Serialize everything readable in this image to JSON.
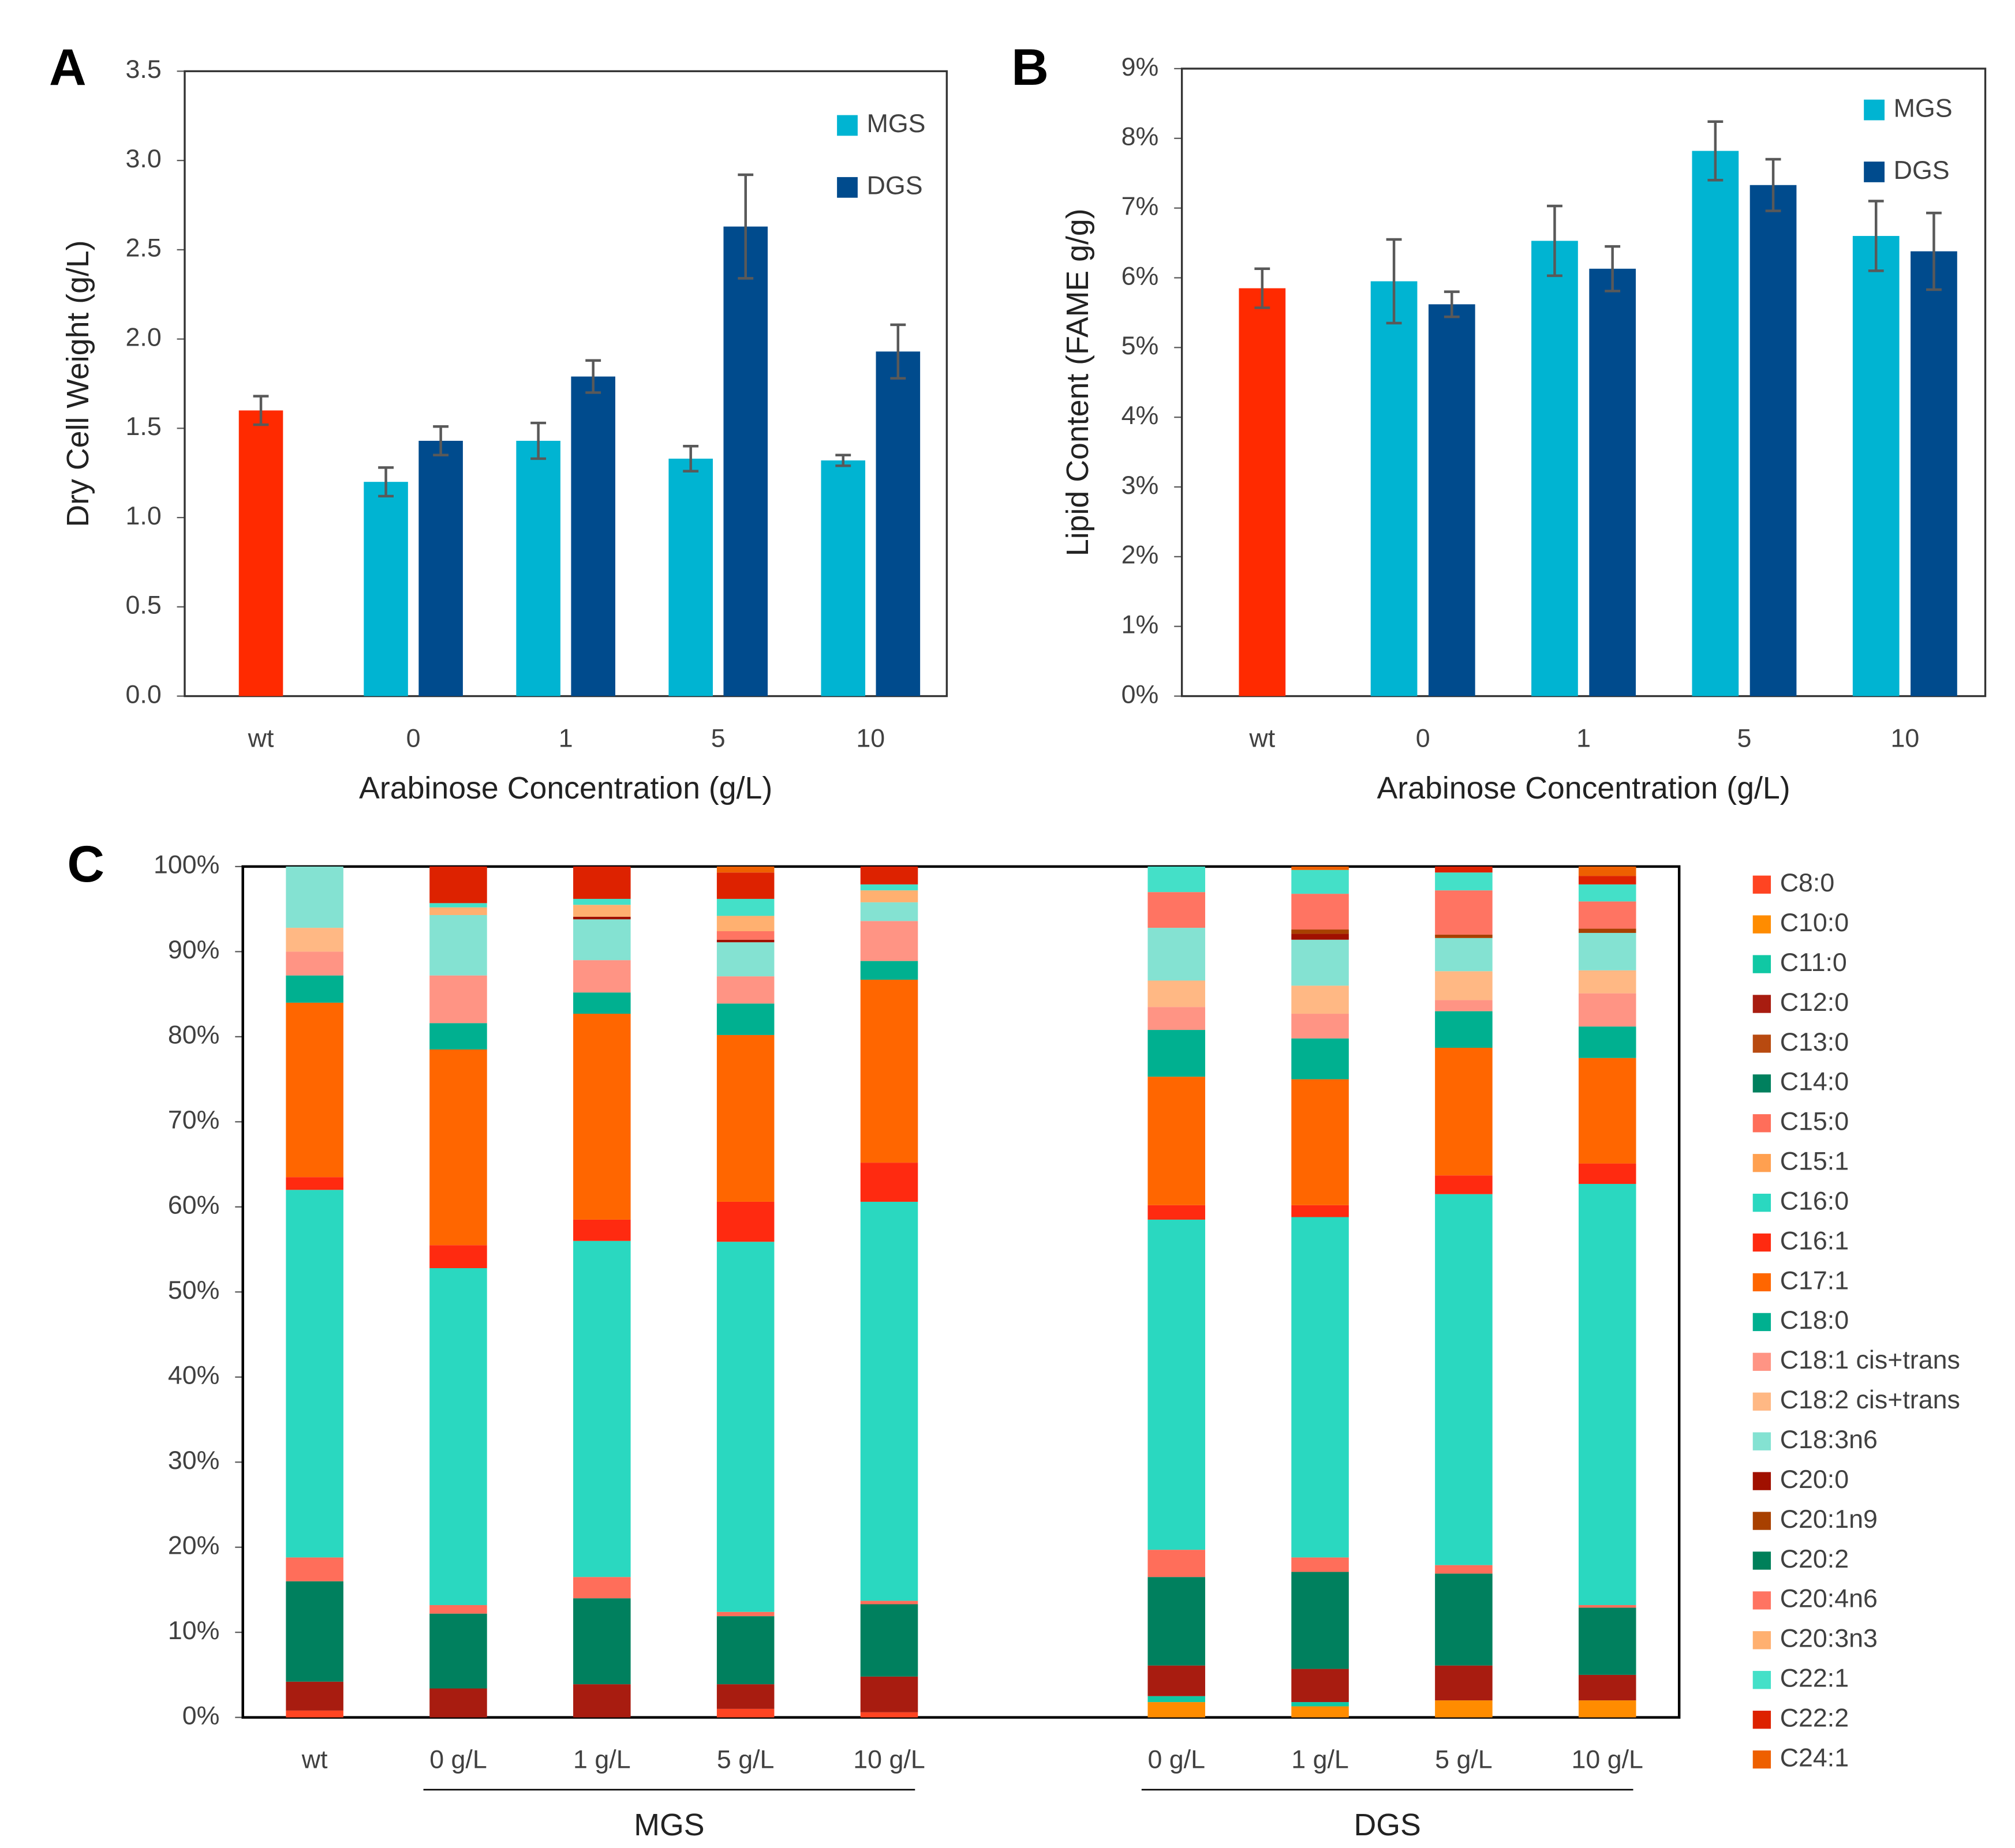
{
  "chart_data": [
    {
      "panel": "A",
      "type": "bar",
      "categories": [
        "wt",
        "0",
        "1",
        "5",
        "10"
      ],
      "series": [
        {
          "name": null,
          "color": "#ff2a00",
          "values": [
            1.6,
            null,
            null,
            null,
            null
          ],
          "errors": [
            0.08,
            null,
            null,
            null,
            null
          ]
        },
        {
          "name": "MGS",
          "color": "#00b4d2",
          "values": [
            null,
            1.2,
            1.43,
            1.33,
            1.32
          ],
          "errors": [
            null,
            0.08,
            0.1,
            0.07,
            0.03
          ]
        },
        {
          "name": "DGS",
          "color": "#004b8d",
          "values": [
            null,
            1.43,
            1.79,
            2.63,
            1.93
          ],
          "errors": [
            null,
            0.08,
            0.09,
            0.29,
            0.15
          ]
        }
      ],
      "y_label": "Dry Cell Weight (g/L)",
      "x_label": "Arabinose Concentration (g/L)",
      "ylim": [
        0,
        3.5
      ],
      "yticks": [
        {
          "value": 0,
          "label": "0.0"
        },
        0.5,
        {
          "value": 1,
          "label": "1.0"
        },
        1.5,
        {
          "value": 2,
          "label": "2.0"
        },
        2.5,
        {
          "value": 3,
          "label": "3.0"
        },
        3.5
      ],
      "legend": "upper right"
    },
    {
      "panel": "B",
      "type": "bar",
      "categories": [
        "wt",
        "0",
        "1",
        "5",
        "10"
      ],
      "series": [
        {
          "name": null,
          "color": "#ff2a00",
          "values": [
            5.85,
            null,
            null,
            null,
            null
          ],
          "errors": [
            0.28,
            null,
            null,
            null,
            null
          ]
        },
        {
          "name": "MGS",
          "color": "#00b4d2",
          "values": [
            null,
            5.95,
            6.53,
            7.82,
            6.6
          ],
          "errors": [
            null,
            0.6,
            0.5,
            0.42,
            0.5
          ]
        },
        {
          "name": "DGS",
          "color": "#004b8d",
          "values": [
            null,
            5.62,
            6.13,
            7.33,
            6.38
          ],
          "errors": [
            null,
            0.18,
            0.32,
            0.37,
            0.55
          ]
        }
      ],
      "y_label": "Lipid Content (FAME g/g)",
      "x_label": "Arabinose Concentration (g/L)",
      "ylim": [
        0,
        9
      ],
      "yticks": [
        {
          "value": 0,
          "label": "0%"
        },
        {
          "value": 1,
          "label": "1%"
        },
        {
          "value": 2,
          "label": "2%"
        },
        {
          "value": 3,
          "label": "3%"
        },
        {
          "value": 4,
          "label": "4%"
        },
        {
          "value": 5,
          "label": "5%"
        },
        {
          "value": 6,
          "label": "6%"
        },
        {
          "value": 7,
          "label": "7%"
        },
        {
          "value": 8,
          "label": "8%"
        },
        {
          "value": 9,
          "label": "9%"
        }
      ],
      "legend": "upper right"
    },
    {
      "panel": "C",
      "type": "stacked_bar",
      "categories": [
        "wt",
        "0 g/L",
        "1 g/L",
        "5 g/L",
        "10 g/L",
        null,
        "0 g/L",
        "1 g/L",
        "5 g/L",
        "10 g/L"
      ],
      "groups": [
        {
          "label": "MGS",
          "members": [
            1,
            4
          ]
        },
        {
          "label": "DGS",
          "members": [
            6,
            9
          ]
        }
      ],
      "series": [
        {
          "name": "C8:0",
          "color": "#ff4422",
          "values": [
            0.8,
            0,
            0,
            1.0,
            0.6,
            null,
            0,
            0,
            0,
            0
          ]
        },
        {
          "name": "C10:0",
          "color": "#ff8c00",
          "values": [
            0,
            0,
            0,
            0,
            0,
            null,
            1.8,
            1.3,
            2.0,
            2.0
          ]
        },
        {
          "name": "C11:0",
          "color": "#10c8a4",
          "values": [
            0,
            0,
            0,
            0,
            0,
            null,
            0.7,
            0.5,
            0,
            0
          ]
        },
        {
          "name": "C12:0",
          "color": "#a81c10",
          "values": [
            3.4,
            3.4,
            3.9,
            2.9,
            4.2,
            null,
            3.6,
            3.9,
            4.1,
            3.0
          ]
        },
        {
          "name": "C13:0",
          "color": "#b84a10",
          "values": [
            0,
            0,
            0,
            0,
            0,
            null,
            0,
            0,
            0,
            0
          ]
        },
        {
          "name": "C14:0",
          "color": "#00805e",
          "values": [
            11.8,
            8.8,
            10.1,
            8.0,
            8.5,
            null,
            10.4,
            11.4,
            10.8,
            7.9
          ]
        },
        {
          "name": "C15:0",
          "color": "#ff6e5a",
          "values": [
            2.8,
            1.0,
            2.5,
            0.5,
            0.4,
            null,
            3.2,
            1.7,
            1.0,
            0.3
          ]
        },
        {
          "name": "C15:1",
          "color": "#ffa050",
          "values": [
            0,
            0,
            0,
            0,
            0,
            null,
            0,
            0,
            0,
            0
          ]
        },
        {
          "name": "C16:0",
          "color": "#2ad8c0",
          "values": [
            43.2,
            39.6,
            39.5,
            43.5,
            46.9,
            null,
            38.8,
            40.0,
            43.6,
            49.5
          ]
        },
        {
          "name": "C16:1",
          "color": "#ff2a10",
          "values": [
            1.5,
            2.7,
            2.5,
            4.7,
            4.6,
            null,
            1.7,
            1.4,
            2.2,
            2.4
          ]
        },
        {
          "name": "C17:1",
          "color": "#ff6600",
          "values": [
            20.5,
            23.0,
            24.2,
            19.6,
            21.5,
            null,
            15.1,
            14.8,
            15.0,
            12.4
          ]
        },
        {
          "name": "C18:0",
          "color": "#00b090",
          "values": [
            3.2,
            3.1,
            2.5,
            3.7,
            2.2,
            null,
            5.5,
            4.8,
            4.3,
            3.7
          ]
        },
        {
          "name": "C18:1 cis+trans",
          "color": "#ff9484",
          "values": [
            2.8,
            5.6,
            3.8,
            3.2,
            4.7,
            null,
            2.7,
            2.9,
            1.3,
            3.9
          ]
        },
        {
          "name": "C18:2 cis+trans",
          "color": "#ffb884",
          "values": [
            2.8,
            0,
            0,
            0,
            0,
            null,
            3.1,
            3.3,
            3.4,
            2.7
          ]
        },
        {
          "name": "C18:3n6",
          "color": "#84e2d2",
          "values": [
            7.2,
            7.1,
            4.8,
            4.0,
            2.2,
            null,
            6.2,
            5.4,
            3.9,
            4.4
          ]
        },
        {
          "name": "C20:0",
          "color": "#a01000",
          "values": [
            0,
            0,
            0.3,
            0.3,
            0,
            null,
            0,
            0.7,
            0,
            0
          ]
        },
        {
          "name": "C20:1n9",
          "color": "#a84000",
          "values": [
            0,
            0,
            0,
            0,
            0,
            null,
            0,
            0.5,
            0.4,
            0.5
          ]
        },
        {
          "name": "C20:2",
          "color": "#00805a",
          "values": [
            0,
            0,
            0,
            0,
            0,
            null,
            0,
            0,
            0,
            0
          ]
        },
        {
          "name": "C20:4n6",
          "color": "#ff7462",
          "values": [
            0,
            0,
            0,
            1.0,
            0,
            null,
            4.2,
            4.2,
            5.2,
            3.2
          ]
        },
        {
          "name": "C20:3n3",
          "color": "#ffb070",
          "values": [
            0,
            0.9,
            1.4,
            1.8,
            1.4,
            null,
            0,
            0,
            0,
            0
          ]
        },
        {
          "name": "C22:1",
          "color": "#44e0c8",
          "values": [
            0,
            0.5,
            0.7,
            2.0,
            0.7,
            null,
            3.0,
            2.8,
            2.1,
            2.0
          ]
        },
        {
          "name": "C22:2",
          "color": "#dd2200",
          "values": [
            0,
            4.3,
            3.8,
            3.1,
            2.1,
            null,
            0,
            0,
            0.7,
            1.0
          ]
        },
        {
          "name": "C24:1",
          "color": "#ee6000",
          "values": [
            0,
            0,
            0,
            0.7,
            0,
            null,
            0,
            0.4,
            0,
            1.1
          ]
        }
      ],
      "ylim": [
        0,
        100
      ],
      "yticks": [
        {
          "value": 0,
          "label": "0%"
        },
        {
          "value": 10,
          "label": "10%"
        },
        {
          "value": 20,
          "label": "20%"
        },
        {
          "value": 30,
          "label": "30%"
        },
        {
          "value": 40,
          "label": "40%"
        },
        {
          "value": 50,
          "label": "50%"
        },
        {
          "value": 60,
          "label": "60%"
        },
        {
          "value": 70,
          "label": "70%"
        },
        {
          "value": 80,
          "label": "80%"
        },
        {
          "value": 90,
          "label": "90%"
        },
        {
          "value": 100,
          "label": "100%"
        }
      ],
      "legend": "outside right"
    }
  ]
}
